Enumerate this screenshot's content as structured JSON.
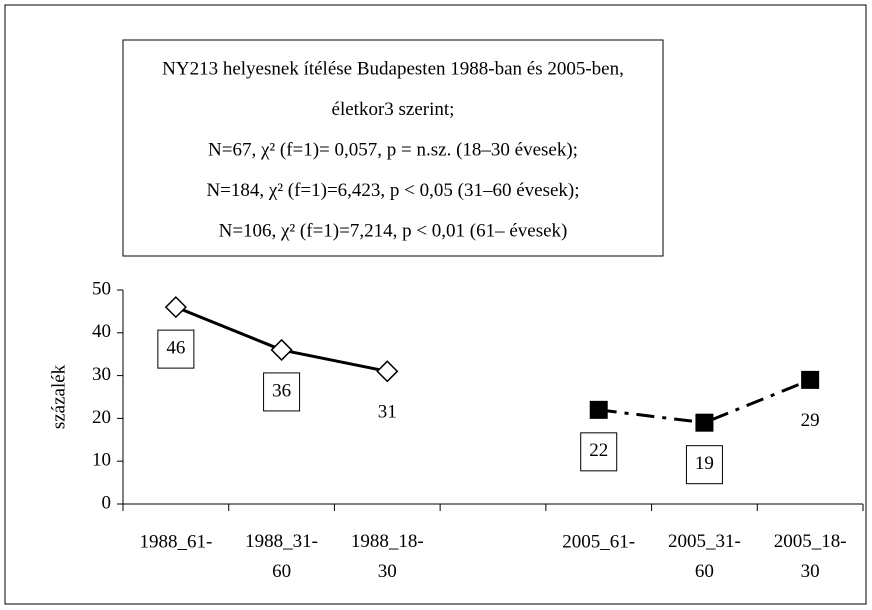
{
  "chart_data": {
    "type": "line",
    "title_lines": [
      "NY213 helyesnek ítélése Budapesten 1988-ban és 2005-ben,",
      "életkor3 szerint;",
      "N=67, χ² (f=1)= 0,057, p = n.sz. (18–30 évesek);",
      "N=184, χ² (f=1)=6,423, p < 0,05 (31–60 évesek);",
      "N=106, χ² (f=1)=7,214, p < 0,01 (61– évesek)"
    ],
    "y_label": "százalék",
    "categories": [
      "1988_61-",
      "1988_31-60",
      "1988_18-30",
      null,
      "2005_61-",
      "2005_31-60",
      "2005_18-30"
    ],
    "series": [
      {
        "color": "#000000",
        "marker": "diamond-open",
        "line_style": "solid",
        "values": [
          46,
          36,
          31,
          null,
          null,
          null,
          null
        ],
        "label_box": [
          true,
          true,
          false,
          null,
          null,
          null,
          null
        ]
      },
      {
        "color": "#000000",
        "marker": "square",
        "line_style": "dashdot",
        "values": [
          null,
          null,
          null,
          null,
          22,
          19,
          29
        ],
        "label_box": [
          null,
          null,
          null,
          null,
          true,
          true,
          false
        ]
      }
    ],
    "ylim": [
      0,
      50
    ],
    "yticks": [
      0,
      10,
      20,
      30,
      40,
      50
    ],
    "grid": false
  }
}
